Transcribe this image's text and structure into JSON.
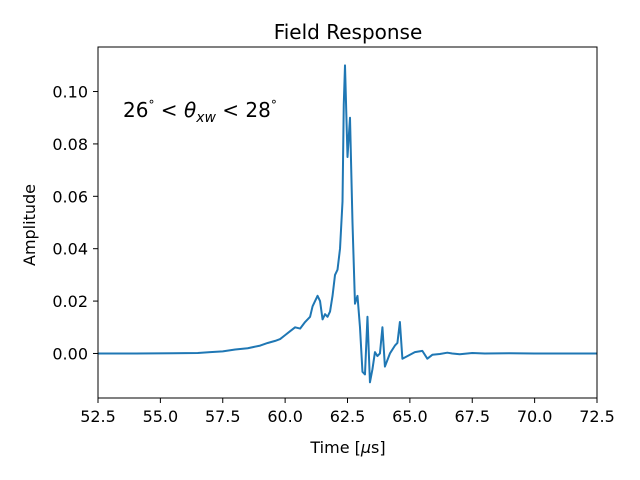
{
  "chart_data": {
    "type": "line",
    "title": "Field Response",
    "xlabel_main": "Time [",
    "xlabel_unit_greek": "μ",
    "xlabel_unit_rest": "s]",
    "ylabel": "Amplitude",
    "annotation": "26° < θxw < 28°",
    "annotation_parts": {
      "left": "26",
      "deg": "°",
      "lt": " < ",
      "theta": "θ",
      "sub": "xw",
      "right": "28"
    },
    "xlim": [
      52.5,
      72.5
    ],
    "ylim": [
      -0.017,
      0.117
    ],
    "xticks": [
      52.5,
      55.0,
      57.5,
      60.0,
      62.5,
      65.0,
      67.5,
      70.0,
      72.5
    ],
    "xtick_labels": [
      "52.5",
      "55.0",
      "57.5",
      "60.0",
      "62.5",
      "65.0",
      "67.5",
      "70.0",
      "72.5"
    ],
    "yticks": [
      0.0,
      0.02,
      0.04,
      0.06,
      0.08,
      0.1
    ],
    "ytick_labels": [
      "0.00",
      "0.02",
      "0.04",
      "0.06",
      "0.08",
      "0.10"
    ],
    "grid": false,
    "series": [
      {
        "color": "#1f77b4",
        "x": [
          52.5,
          54.0,
          55.5,
          56.5,
          57.0,
          57.5,
          58.0,
          58.5,
          59.0,
          59.3,
          59.6,
          59.8,
          60.0,
          60.2,
          60.4,
          60.6,
          60.8,
          61.0,
          61.1,
          61.2,
          61.3,
          61.4,
          61.5,
          61.6,
          61.7,
          61.8,
          61.9,
          62.0,
          62.1,
          62.2,
          62.3,
          62.35,
          62.4,
          62.5,
          62.6,
          62.7,
          62.8,
          62.9,
          63.0,
          63.1,
          63.2,
          63.3,
          63.4,
          63.5,
          63.6,
          63.7,
          63.8,
          63.9,
          64.0,
          64.2,
          64.4,
          64.5,
          64.6,
          64.7,
          64.9,
          65.2,
          65.5,
          65.7,
          65.9,
          66.2,
          66.5,
          66.7,
          67.0,
          67.5,
          68.0,
          69.0,
          70.0,
          71.0,
          72.5
        ],
        "y": [
          0.0,
          0.0,
          0.0001,
          0.0002,
          0.0005,
          0.0008,
          0.0015,
          0.002,
          0.003,
          0.004,
          0.0048,
          0.0055,
          0.007,
          0.0085,
          0.01,
          0.0095,
          0.012,
          0.014,
          0.018,
          0.02,
          0.022,
          0.02,
          0.013,
          0.015,
          0.014,
          0.016,
          0.022,
          0.03,
          0.032,
          0.04,
          0.058,
          0.095,
          0.11,
          0.075,
          0.09,
          0.05,
          0.019,
          0.022,
          0.01,
          -0.007,
          -0.008,
          0.014,
          -0.011,
          -0.006,
          0.0005,
          -0.001,
          0.0,
          0.01,
          -0.005,
          0.0,
          0.003,
          0.004,
          0.012,
          -0.002,
          -0.001,
          0.0005,
          0.001,
          -0.002,
          -0.0005,
          -0.0002,
          0.0003,
          0.0,
          -0.0003,
          0.0002,
          0.0,
          0.0001,
          0.0,
          0.0,
          0.0
        ]
      }
    ]
  }
}
